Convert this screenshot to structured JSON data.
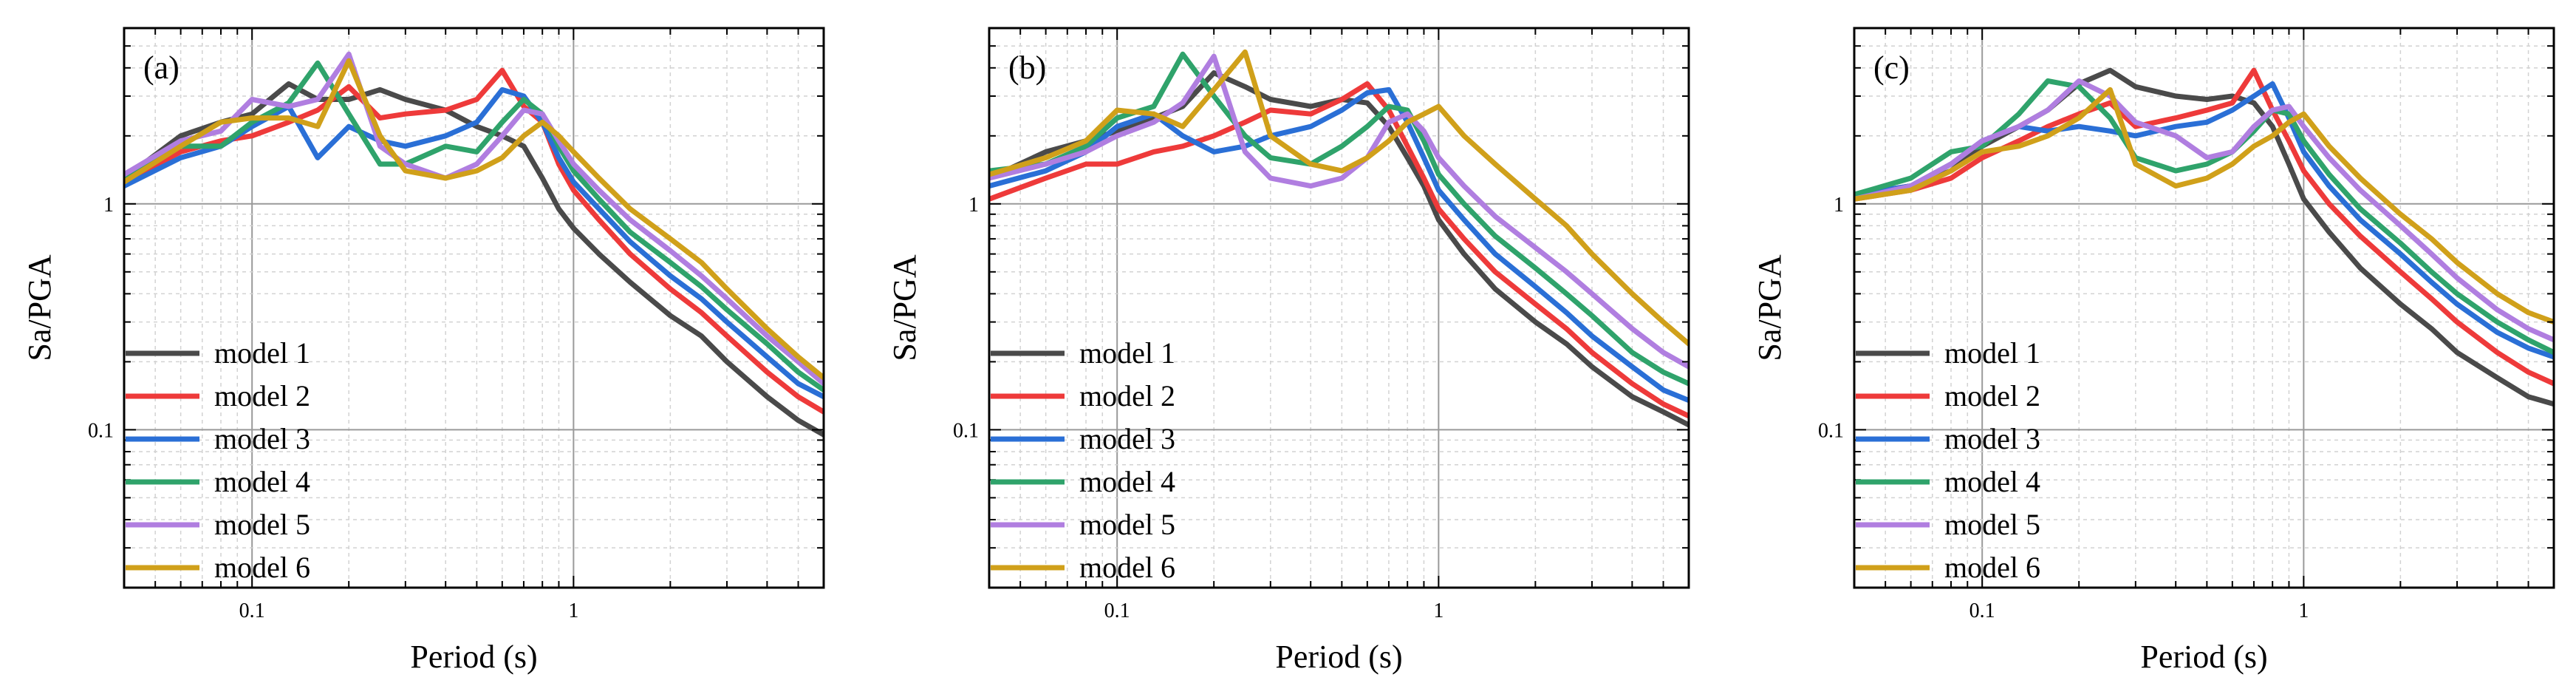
{
  "figure": {
    "legend_labels": [
      "model 1",
      "model 2",
      "model 3",
      "model 4",
      "model 5",
      "model 6"
    ]
  },
  "chart_data": [
    {
      "type": "line",
      "panel_label": "(a)",
      "xlabel": "Period (s)",
      "ylabel": "Sa/PGA",
      "xscale": "log",
      "yscale": "log",
      "xlim": [
        0.04,
        6
      ],
      "ylim": [
        0.02,
        6
      ],
      "xticks": [
        0.1,
        1
      ],
      "xtick_labels": [
        "0.1",
        "1"
      ],
      "yticks": [
        0.1,
        1
      ],
      "ytick_labels": [
        "0.1",
        "1"
      ],
      "grid": true,
      "legend_position": "lower-left",
      "series": [
        {
          "name": "model 1",
          "color": "#4a4a4a",
          "x": [
            0.04,
            0.06,
            0.08,
            0.1,
            0.13,
            0.16,
            0.2,
            0.25,
            0.3,
            0.4,
            0.5,
            0.6,
            0.7,
            0.8,
            0.9,
            1,
            1.2,
            1.5,
            2,
            2.5,
            3,
            4,
            5,
            6
          ],
          "y": [
            1.3,
            2.0,
            2.3,
            2.5,
            3.4,
            2.9,
            2.9,
            3.2,
            2.9,
            2.6,
            2.2,
            2.0,
            1.8,
            1.3,
            0.95,
            0.78,
            0.6,
            0.45,
            0.32,
            0.26,
            0.2,
            0.14,
            0.11,
            0.095
          ]
        },
        {
          "name": "model 2",
          "color": "#ee3a3a",
          "x": [
            0.04,
            0.06,
            0.08,
            0.1,
            0.13,
            0.16,
            0.2,
            0.25,
            0.3,
            0.4,
            0.5,
            0.6,
            0.7,
            0.8,
            0.9,
            1,
            1.2,
            1.5,
            2,
            2.5,
            3,
            4,
            5,
            6
          ],
          "y": [
            1.25,
            1.7,
            1.9,
            2.0,
            2.3,
            2.6,
            3.3,
            2.4,
            2.5,
            2.6,
            2.9,
            3.9,
            2.7,
            2.3,
            1.5,
            1.15,
            0.85,
            0.6,
            0.42,
            0.33,
            0.26,
            0.18,
            0.14,
            0.12
          ]
        },
        {
          "name": "model 3",
          "color": "#2a6fd6",
          "x": [
            0.04,
            0.06,
            0.08,
            0.1,
            0.13,
            0.16,
            0.2,
            0.25,
            0.3,
            0.4,
            0.5,
            0.6,
            0.7,
            0.8,
            0.9,
            1,
            1.2,
            1.5,
            2,
            2.5,
            3,
            4,
            5,
            6
          ],
          "y": [
            1.2,
            1.6,
            1.8,
            2.2,
            2.7,
            1.6,
            2.2,
            1.9,
            1.8,
            2.0,
            2.3,
            3.2,
            3.0,
            2.3,
            1.6,
            1.25,
            0.95,
            0.68,
            0.48,
            0.38,
            0.3,
            0.21,
            0.16,
            0.14
          ]
        },
        {
          "name": "model 4",
          "color": "#2fa36b",
          "x": [
            0.04,
            0.06,
            0.08,
            0.1,
            0.13,
            0.16,
            0.2,
            0.25,
            0.3,
            0.4,
            0.5,
            0.6,
            0.7,
            0.8,
            0.9,
            1,
            1.2,
            1.5,
            2,
            2.5,
            3,
            4,
            5,
            6
          ],
          "y": [
            1.3,
            1.8,
            1.8,
            2.3,
            2.8,
            4.2,
            2.5,
            1.5,
            1.5,
            1.8,
            1.7,
            2.3,
            2.9,
            2.5,
            1.8,
            1.4,
            1.05,
            0.75,
            0.55,
            0.43,
            0.34,
            0.24,
            0.18,
            0.15
          ]
        },
        {
          "name": "model 5",
          "color": "#b07ee0",
          "x": [
            0.04,
            0.06,
            0.08,
            0.1,
            0.13,
            0.16,
            0.2,
            0.25,
            0.3,
            0.4,
            0.5,
            0.6,
            0.7,
            0.8,
            0.9,
            1,
            1.2,
            1.5,
            2,
            2.5,
            3,
            4,
            5,
            6
          ],
          "y": [
            1.35,
            1.9,
            2.1,
            2.9,
            2.7,
            2.9,
            4.6,
            1.8,
            1.5,
            1.3,
            1.5,
            2.0,
            2.6,
            2.5,
            1.9,
            1.5,
            1.15,
            0.85,
            0.62,
            0.48,
            0.38,
            0.26,
            0.2,
            0.16
          ]
        },
        {
          "name": "model 6",
          "color": "#d0a01a",
          "x": [
            0.04,
            0.06,
            0.08,
            0.1,
            0.13,
            0.16,
            0.2,
            0.25,
            0.3,
            0.4,
            0.5,
            0.6,
            0.7,
            0.8,
            0.9,
            1,
            1.2,
            1.5,
            2,
            2.5,
            3,
            4,
            5,
            6
          ],
          "y": [
            1.25,
            1.8,
            2.3,
            2.4,
            2.4,
            2.2,
            4.3,
            2.0,
            1.4,
            1.3,
            1.4,
            1.6,
            2.0,
            2.3,
            2.0,
            1.7,
            1.3,
            0.95,
            0.7,
            0.55,
            0.42,
            0.28,
            0.21,
            0.17
          ]
        }
      ]
    },
    {
      "type": "line",
      "panel_label": "(b)",
      "xlabel": "Period (s)",
      "ylabel": "Sa/PGA",
      "xscale": "log",
      "yscale": "log",
      "xlim": [
        0.04,
        6
      ],
      "ylim": [
        0.02,
        6
      ],
      "xticks": [
        0.1,
        1
      ],
      "xtick_labels": [
        "0.1",
        "1"
      ],
      "yticks": [
        0.1,
        1
      ],
      "ytick_labels": [
        "0.1",
        "1"
      ],
      "grid": true,
      "legend_position": "lower-left",
      "series": [
        {
          "name": "model 1",
          "color": "#4a4a4a",
          "x": [
            0.04,
            0.06,
            0.08,
            0.1,
            0.13,
            0.16,
            0.2,
            0.25,
            0.3,
            0.4,
            0.5,
            0.6,
            0.7,
            0.8,
            0.9,
            1,
            1.2,
            1.5,
            2,
            2.5,
            3,
            4,
            5,
            6
          ],
          "y": [
            1.3,
            1.7,
            1.9,
            2.1,
            2.4,
            2.7,
            3.8,
            3.3,
            2.9,
            2.7,
            2.9,
            2.8,
            2.2,
            1.6,
            1.2,
            0.85,
            0.6,
            0.42,
            0.3,
            0.24,
            0.19,
            0.14,
            0.12,
            0.105
          ]
        },
        {
          "name": "model 2",
          "color": "#ee3a3a",
          "x": [
            0.04,
            0.06,
            0.08,
            0.1,
            0.13,
            0.16,
            0.2,
            0.25,
            0.3,
            0.4,
            0.5,
            0.6,
            0.7,
            0.8,
            0.9,
            1,
            1.2,
            1.5,
            2,
            2.5,
            3,
            4,
            5,
            6
          ],
          "y": [
            1.05,
            1.3,
            1.5,
            1.5,
            1.7,
            1.8,
            2.0,
            2.3,
            2.6,
            2.5,
            2.9,
            3.4,
            2.6,
            1.8,
            1.3,
            0.95,
            0.7,
            0.5,
            0.36,
            0.28,
            0.22,
            0.16,
            0.13,
            0.115
          ]
        },
        {
          "name": "model 3",
          "color": "#2a6fd6",
          "x": [
            0.04,
            0.06,
            0.08,
            0.1,
            0.13,
            0.16,
            0.2,
            0.25,
            0.3,
            0.4,
            0.5,
            0.6,
            0.7,
            0.8,
            0.9,
            1,
            1.2,
            1.5,
            2,
            2.5,
            3,
            4,
            5,
            6
          ],
          "y": [
            1.2,
            1.4,
            1.7,
            2.2,
            2.5,
            2.0,
            1.7,
            1.8,
            2.0,
            2.2,
            2.6,
            3.1,
            3.2,
            2.3,
            1.6,
            1.15,
            0.85,
            0.6,
            0.43,
            0.33,
            0.26,
            0.19,
            0.15,
            0.135
          ]
        },
        {
          "name": "model 4",
          "color": "#2fa36b",
          "x": [
            0.04,
            0.06,
            0.08,
            0.1,
            0.13,
            0.16,
            0.2,
            0.25,
            0.3,
            0.4,
            0.5,
            0.6,
            0.7,
            0.8,
            0.9,
            1,
            1.2,
            1.5,
            2,
            2.5,
            3,
            4,
            5,
            6
          ],
          "y": [
            1.4,
            1.5,
            1.8,
            2.4,
            2.7,
            4.6,
            3.0,
            2.0,
            1.6,
            1.5,
            1.8,
            2.2,
            2.7,
            2.6,
            1.9,
            1.35,
            1.0,
            0.72,
            0.52,
            0.4,
            0.32,
            0.22,
            0.18,
            0.16
          ]
        },
        {
          "name": "model 5",
          "color": "#b07ee0",
          "x": [
            0.04,
            0.06,
            0.08,
            0.1,
            0.13,
            0.16,
            0.2,
            0.25,
            0.3,
            0.4,
            0.5,
            0.6,
            0.7,
            0.8,
            0.9,
            1,
            1.2,
            1.5,
            2,
            2.5,
            3,
            4,
            5,
            6
          ],
          "y": [
            1.3,
            1.5,
            1.7,
            2.0,
            2.3,
            2.8,
            4.5,
            1.7,
            1.3,
            1.2,
            1.3,
            1.6,
            2.3,
            2.5,
            2.1,
            1.6,
            1.2,
            0.88,
            0.64,
            0.5,
            0.4,
            0.28,
            0.22,
            0.19
          ]
        },
        {
          "name": "model 6",
          "color": "#d0a01a",
          "x": [
            0.04,
            0.06,
            0.08,
            0.1,
            0.13,
            0.16,
            0.2,
            0.25,
            0.3,
            0.4,
            0.5,
            0.6,
            0.7,
            0.8,
            0.9,
            1,
            1.2,
            1.5,
            2,
            2.5,
            3,
            4,
            5,
            6
          ],
          "y": [
            1.35,
            1.6,
            1.9,
            2.6,
            2.5,
            2.2,
            3.2,
            4.7,
            2.0,
            1.5,
            1.4,
            1.6,
            1.9,
            2.3,
            2.5,
            2.7,
            2.0,
            1.5,
            1.05,
            0.8,
            0.6,
            0.4,
            0.3,
            0.24
          ]
        }
      ]
    },
    {
      "type": "line",
      "panel_label": "(c)",
      "xlabel": "Period (s)",
      "ylabel": "Sa/PGA",
      "xscale": "log",
      "yscale": "log",
      "xlim": [
        0.04,
        6
      ],
      "ylim": [
        0.02,
        6
      ],
      "xticks": [
        0.1,
        1
      ],
      "xtick_labels": [
        "0.1",
        "1"
      ],
      "yticks": [
        0.1,
        1
      ],
      "ytick_labels": [
        "0.1",
        "1"
      ],
      "grid": true,
      "legend_position": "lower-left",
      "series": [
        {
          "name": "model 1",
          "color": "#4a4a4a",
          "x": [
            0.04,
            0.06,
            0.08,
            0.1,
            0.13,
            0.16,
            0.2,
            0.25,
            0.3,
            0.4,
            0.5,
            0.6,
            0.7,
            0.8,
            0.9,
            1,
            1.2,
            1.5,
            2,
            2.5,
            3,
            4,
            5,
            6
          ],
          "y": [
            1.1,
            1.2,
            1.4,
            1.8,
            2.2,
            2.6,
            3.4,
            3.9,
            3.3,
            3.0,
            2.9,
            3.0,
            2.8,
            2.2,
            1.5,
            1.05,
            0.75,
            0.52,
            0.36,
            0.28,
            0.22,
            0.17,
            0.14,
            0.13
          ]
        },
        {
          "name": "model 2",
          "color": "#ee3a3a",
          "x": [
            0.04,
            0.06,
            0.08,
            0.1,
            0.13,
            0.16,
            0.2,
            0.25,
            0.3,
            0.4,
            0.5,
            0.6,
            0.7,
            0.8,
            0.9,
            1,
            1.2,
            1.5,
            2,
            2.5,
            3,
            4,
            5,
            6
          ],
          "y": [
            1.05,
            1.15,
            1.3,
            1.6,
            1.9,
            2.2,
            2.5,
            2.8,
            2.2,
            2.4,
            2.6,
            2.8,
            3.9,
            2.6,
            1.9,
            1.4,
            1.0,
            0.72,
            0.5,
            0.38,
            0.3,
            0.22,
            0.18,
            0.16
          ]
        },
        {
          "name": "model 3",
          "color": "#2a6fd6",
          "x": [
            0.04,
            0.06,
            0.08,
            0.1,
            0.13,
            0.16,
            0.2,
            0.25,
            0.3,
            0.4,
            0.5,
            0.6,
            0.7,
            0.8,
            0.9,
            1,
            1.2,
            1.5,
            2,
            2.5,
            3,
            4,
            5,
            6
          ],
          "y": [
            1.1,
            1.2,
            1.5,
            1.9,
            2.2,
            2.1,
            2.2,
            2.1,
            2.0,
            2.2,
            2.3,
            2.6,
            3.0,
            3.4,
            2.4,
            1.7,
            1.2,
            0.85,
            0.6,
            0.45,
            0.36,
            0.27,
            0.23,
            0.21
          ]
        },
        {
          "name": "model 4",
          "color": "#2fa36b",
          "x": [
            0.04,
            0.06,
            0.08,
            0.1,
            0.13,
            0.16,
            0.2,
            0.25,
            0.3,
            0.4,
            0.5,
            0.6,
            0.7,
            0.8,
            0.9,
            1,
            1.2,
            1.5,
            2,
            2.5,
            3,
            4,
            5,
            6
          ],
          "y": [
            1.1,
            1.3,
            1.7,
            1.8,
            2.5,
            3.5,
            3.3,
            2.4,
            1.6,
            1.4,
            1.5,
            1.7,
            2.1,
            2.6,
            2.5,
            1.9,
            1.35,
            0.95,
            0.67,
            0.5,
            0.4,
            0.3,
            0.25,
            0.22
          ]
        },
        {
          "name": "model 5",
          "color": "#b07ee0",
          "x": [
            0.04,
            0.06,
            0.08,
            0.1,
            0.13,
            0.16,
            0.2,
            0.25,
            0.3,
            0.4,
            0.5,
            0.6,
            0.7,
            0.8,
            0.9,
            1,
            1.2,
            1.5,
            2,
            2.5,
            3,
            4,
            5,
            6
          ],
          "y": [
            1.05,
            1.2,
            1.5,
            1.9,
            2.2,
            2.6,
            3.5,
            3.0,
            2.3,
            2.0,
            1.6,
            1.7,
            2.2,
            2.6,
            2.7,
            2.2,
            1.6,
            1.15,
            0.8,
            0.6,
            0.47,
            0.34,
            0.28,
            0.25
          ]
        },
        {
          "name": "model 6",
          "color": "#d0a01a",
          "x": [
            0.04,
            0.06,
            0.08,
            0.1,
            0.13,
            0.16,
            0.2,
            0.25,
            0.3,
            0.4,
            0.5,
            0.6,
            0.7,
            0.8,
            0.9,
            1,
            1.2,
            1.5,
            2,
            2.5,
            3,
            4,
            5,
            6
          ],
          "y": [
            1.05,
            1.15,
            1.4,
            1.7,
            1.8,
            2.0,
            2.4,
            3.2,
            1.5,
            1.2,
            1.3,
            1.5,
            1.8,
            2.0,
            2.3,
            2.5,
            1.8,
            1.3,
            0.9,
            0.7,
            0.55,
            0.4,
            0.33,
            0.3
          ]
        }
      ]
    }
  ]
}
